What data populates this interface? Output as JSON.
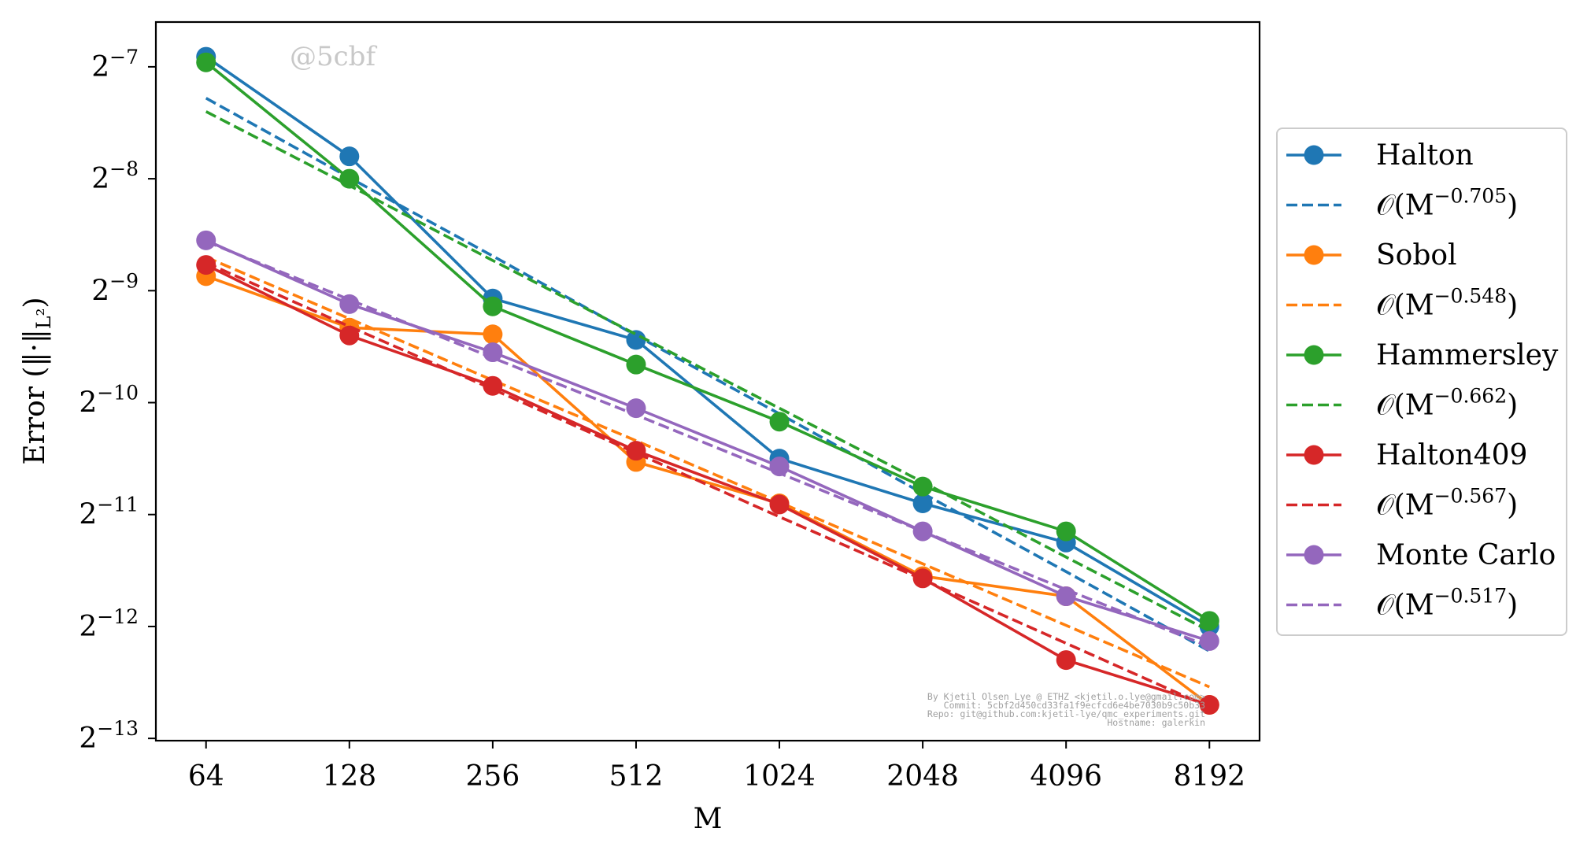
{
  "chart_data": {
    "type": "line",
    "x_scale": "log2",
    "y_scale": "log2",
    "xlabel": "M",
    "ylabel": "Error (‖·‖",
    "ylabel_sub": "L²",
    "ylabel_close": ")",
    "x": [
      64,
      128,
      256,
      512,
      1024,
      2048,
      4096,
      8192
    ],
    "x_tick_labels": [
      "64",
      "128",
      "256",
      "512",
      "1024",
      "2048",
      "4096",
      "8192"
    ],
    "y_ticks": [
      {
        "base": "2",
        "exp": "−7",
        "value_log2": -7
      },
      {
        "base": "2",
        "exp": "−8",
        "value_log2": -8
      },
      {
        "base": "2",
        "exp": "−9",
        "value_log2": -9
      },
      {
        "base": "2",
        "exp": "−10",
        "value_log2": -10
      },
      {
        "base": "2",
        "exp": "−11",
        "value_log2": -11
      },
      {
        "base": "2",
        "exp": "−12",
        "value_log2": -12
      },
      {
        "base": "2",
        "exp": "−13",
        "value_log2": -13
      }
    ],
    "y_log2_range": [
      -13.02,
      -6.6
    ],
    "grid": false,
    "legend_position": "outside-right",
    "series": [
      {
        "name": "Halton",
        "color": "#1f77b4",
        "style": "solid-marker",
        "y_log2": [
          -6.91,
          -7.8,
          -9.07,
          -9.44,
          -10.5,
          -10.9,
          -11.25,
          -12.0
        ]
      },
      {
        "name": "𝒪(M",
        "exponent": "−0.705",
        "name_close": ")",
        "color": "#1f77b4",
        "style": "dashed",
        "y_log2": [
          -7.28,
          -7.99,
          -8.69,
          -9.4,
          -10.1,
          -10.81,
          -11.51,
          -12.22
        ]
      },
      {
        "name": "Sobol",
        "color": "#ff7f0e",
        "style": "solid-marker",
        "y_log2": [
          -8.87,
          -9.33,
          -9.39,
          -10.53,
          -10.9,
          -11.55,
          -11.73,
          -12.7
        ]
      },
      {
        "name": "𝒪(M",
        "exponent": "−0.548",
        "name_close": ")",
        "color": "#ff7f0e",
        "style": "dashed",
        "y_log2": [
          -8.7,
          -9.25,
          -9.8,
          -10.34,
          -10.89,
          -11.44,
          -11.99,
          -12.54
        ]
      },
      {
        "name": "Hammersley",
        "color": "#2ca02c",
        "style": "solid-marker",
        "y_log2": [
          -6.96,
          -8.0,
          -9.14,
          -9.66,
          -10.17,
          -10.75,
          -11.15,
          -11.95
        ]
      },
      {
        "name": "𝒪(M",
        "exponent": "−0.662",
        "name_close": ")",
        "color": "#2ca02c",
        "style": "dashed",
        "y_log2": [
          -7.4,
          -8.06,
          -8.73,
          -9.39,
          -10.05,
          -10.71,
          -11.38,
          -12.04
        ]
      },
      {
        "name": "Halton409",
        "color": "#d62728",
        "style": "solid-marker",
        "y_log2": [
          -8.77,
          -9.4,
          -9.85,
          -10.43,
          -10.91,
          -11.57,
          -12.3,
          -12.7
        ]
      },
      {
        "name": "𝒪(M",
        "exponent": "−0.567",
        "name_close": ")",
        "color": "#d62728",
        "style": "dashed",
        "y_log2": [
          -8.75,
          -9.32,
          -9.88,
          -10.45,
          -11.02,
          -11.58,
          -12.15,
          -12.72
        ]
      },
      {
        "name": "Monte Carlo",
        "color": "#9467bd",
        "style": "solid-marker",
        "y_log2": [
          -8.55,
          -9.12,
          -9.55,
          -10.05,
          -10.57,
          -11.15,
          -11.73,
          -12.13
        ]
      },
      {
        "name": "𝒪(M",
        "exponent": "−0.517",
        "name_close": ")",
        "color": "#9467bd",
        "style": "dashed",
        "y_log2": [
          -8.56,
          -9.08,
          -9.6,
          -10.11,
          -10.63,
          -11.15,
          -11.67,
          -12.18
        ]
      }
    ]
  },
  "watermark": "@5cbf",
  "footer": {
    "line1": "By Kjetil Olsen Lye @ ETHZ <kjetil.o.lye@gmail.com>",
    "line2": "Commit: 5cbf2d450cd33fa1f9ecfcd6e4be7030b9c50b33",
    "line3": "Repo: git@github.com:kjetil-lye/qmc_experiments.git",
    "line4": "Hostname: galerkin"
  }
}
